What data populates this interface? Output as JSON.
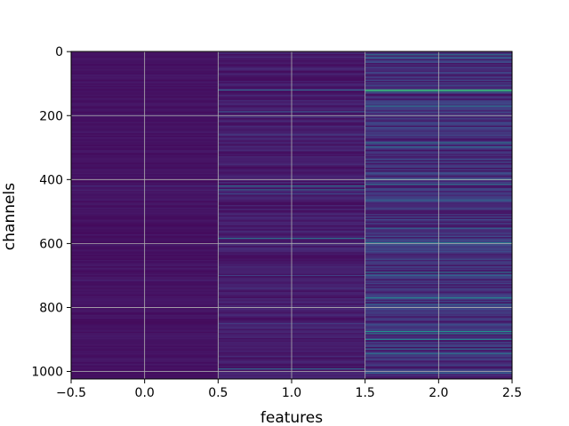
{
  "chart_data": {
    "type": "heatmap",
    "title": "",
    "xlabel": "features",
    "ylabel": "channels",
    "x_categories": [
      0,
      1,
      2
    ],
    "x_range": [
      -0.5,
      2.5
    ],
    "y_range": [
      1023.5,
      -0.5
    ],
    "x_ticks": [
      "−0.5",
      "0.0",
      "0.5",
      "1.0",
      "1.5",
      "2.0",
      "2.5"
    ],
    "y_ticks": [
      "0",
      "200",
      "400",
      "600",
      "800",
      "1000"
    ],
    "n_channels": 1024,
    "colormap": "viridis",
    "grid": true,
    "series": [
      {
        "column": 0,
        "base_level": 0.04,
        "highlight_channels": [
          {
            "channel": 420,
            "value": 0.12
          },
          {
            "channel": 433,
            "value": 0.1
          },
          {
            "channel": 715,
            "value": 0.1
          },
          {
            "channel": 1000,
            "value": 0.1
          }
        ]
      },
      {
        "column": 1,
        "base_level": 0.06,
        "highlight_channels": [
          {
            "channel": 120,
            "value": 0.3
          },
          {
            "channel": 188,
            "value": 0.25
          },
          {
            "channel": 200,
            "value": 0.18
          },
          {
            "channel": 260,
            "value": 0.15
          },
          {
            "channel": 420,
            "value": 0.35
          },
          {
            "channel": 432,
            "value": 0.3
          },
          {
            "channel": 445,
            "value": 0.2
          },
          {
            "channel": 584,
            "value": 0.35
          },
          {
            "channel": 700,
            "value": 0.18
          },
          {
            "channel": 850,
            "value": 0.15
          },
          {
            "channel": 992,
            "value": 0.3
          }
        ]
      },
      {
        "column": 2,
        "base_level": 0.1,
        "highlight_channels": [
          {
            "channel": 10,
            "value": 0.35
          },
          {
            "channel": 20,
            "value": 0.28
          },
          {
            "channel": 120,
            "value": 0.62
          },
          {
            "channel": 124,
            "value": 0.55
          },
          {
            "channel": 170,
            "value": 0.35
          },
          {
            "channel": 285,
            "value": 0.35
          },
          {
            "channel": 298,
            "value": 0.3
          },
          {
            "channel": 400,
            "value": 0.4
          },
          {
            "channel": 415,
            "value": 0.35
          },
          {
            "channel": 465,
            "value": 0.3
          },
          {
            "channel": 552,
            "value": 0.3
          },
          {
            "channel": 598,
            "value": 0.4
          },
          {
            "channel": 690,
            "value": 0.35
          },
          {
            "channel": 700,
            "value": 0.28
          },
          {
            "channel": 770,
            "value": 0.42
          },
          {
            "channel": 790,
            "value": 0.3
          },
          {
            "channel": 875,
            "value": 0.45
          },
          {
            "channel": 882,
            "value": 0.38
          },
          {
            "channel": 900,
            "value": 0.4
          },
          {
            "channel": 930,
            "value": 0.3
          },
          {
            "channel": 945,
            "value": 0.35
          },
          {
            "channel": 1005,
            "value": 0.3
          }
        ]
      }
    ]
  }
}
